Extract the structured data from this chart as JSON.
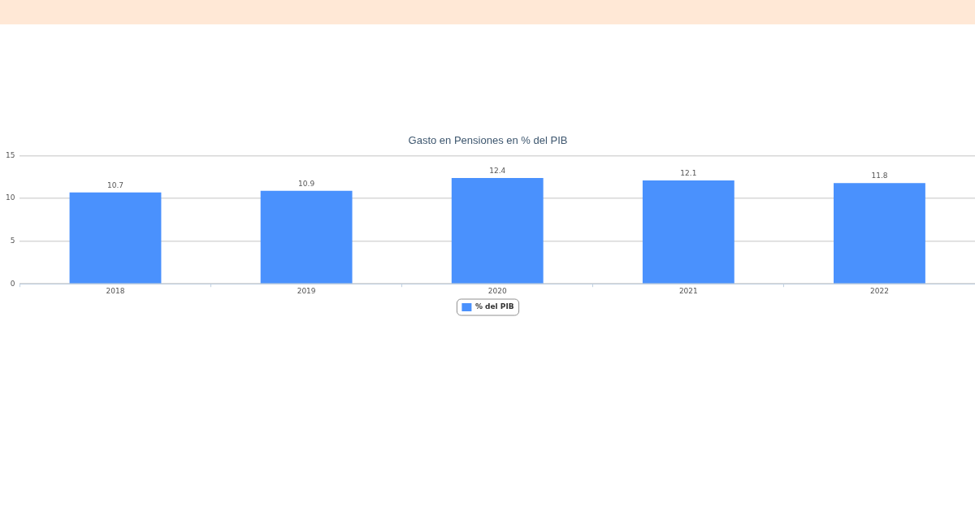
{
  "chart_data": {
    "type": "bar",
    "title": "Gasto en Pensiones en % del PIB",
    "categories": [
      "2018",
      "2019",
      "2020",
      "2021",
      "2022"
    ],
    "series": [
      {
        "name": "% del PIB",
        "color": "#4a91fd",
        "values": [
          10.7,
          10.9,
          12.4,
          12.1,
          11.8
        ]
      }
    ],
    "ylim": [
      0,
      15
    ],
    "yticks": [
      0,
      5,
      10,
      15
    ],
    "grid": "y",
    "legend": "bottom",
    "data_labels": true
  }
}
